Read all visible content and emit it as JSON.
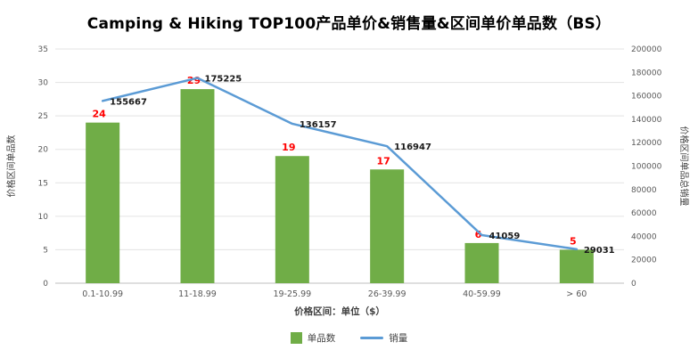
{
  "chart_data": {
    "type": "bar+line",
    "title": "Camping & Hiking TOP100产品单价&销售量&区间单价单品数（BS）",
    "categories": [
      "0.1-10.99",
      "11-18.99",
      "19-25.99",
      "26-39.99",
      "40-59.99",
      "> 60"
    ],
    "series": [
      {
        "name": "单品数",
        "type": "bar",
        "axis": "left",
        "values": [
          24,
          29,
          19,
          17,
          6,
          5
        ],
        "color": "#70AD47",
        "label_color": "#FF0000"
      },
      {
        "name": "销量",
        "type": "line",
        "axis": "right",
        "values": [
          155667,
          175225,
          136157,
          116947,
          41059,
          29031
        ],
        "color": "#5B9BD5",
        "label_color": "#1a1a1a"
      }
    ],
    "xlabel": "价格区间：单位（$）",
    "left_axis": {
      "label": "价格区间单品数",
      "min": 0,
      "max": 35,
      "step": 5
    },
    "right_axis": {
      "label": "价格区间单品总销量",
      "min": 0,
      "max": 200000,
      "step": 20000
    },
    "grid": true,
    "legend_position": "bottom",
    "colors": {
      "grid": "#E3E3E3",
      "axis": "#BFBFBF",
      "tick_text": "#595959"
    }
  }
}
